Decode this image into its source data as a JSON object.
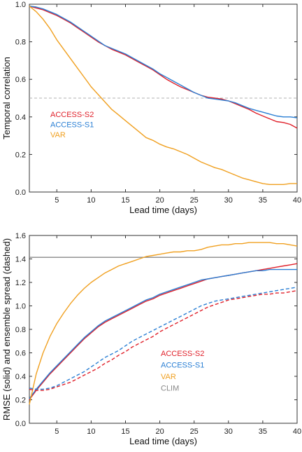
{
  "chart_data": [
    {
      "type": "line",
      "xlabel": "Lead time (days)",
      "ylabel": "Temporal correlation",
      "xlim": [
        1,
        40
      ],
      "ylim": [
        0,
        1.0
      ],
      "xticks": [
        5,
        10,
        15,
        20,
        25,
        30,
        35,
        40
      ],
      "yticks": [
        0,
        0.2,
        0.4,
        0.6,
        0.8,
        1.0
      ],
      "ytick_labels": [
        "0.0",
        "0.2",
        "0.4",
        "0.6",
        "0.8",
        "1.0"
      ],
      "legend_position": "left",
      "reference_line": {
        "y": 0.5,
        "style": "dashed",
        "color": "#b0b0b0"
      },
      "series": [
        {
          "name": "ACCESS-S2",
          "color": "#e0202a",
          "style": "solid",
          "x": [
            1,
            2,
            3,
            4,
            5,
            6,
            7,
            8,
            9,
            10,
            11,
            12,
            13,
            14,
            15,
            16,
            17,
            18,
            19,
            20,
            21,
            22,
            23,
            24,
            25,
            26,
            27,
            28,
            29,
            30,
            31,
            32,
            33,
            34,
            35,
            36,
            37,
            38,
            39,
            40
          ],
          "y": [
            0.99,
            0.98,
            0.97,
            0.955,
            0.94,
            0.92,
            0.9,
            0.875,
            0.85,
            0.825,
            0.8,
            0.78,
            0.76,
            0.745,
            0.73,
            0.71,
            0.69,
            0.67,
            0.65,
            0.625,
            0.6,
            0.58,
            0.56,
            0.545,
            0.53,
            0.515,
            0.505,
            0.5,
            0.495,
            0.485,
            0.47,
            0.455,
            0.44,
            0.42,
            0.405,
            0.39,
            0.375,
            0.37,
            0.36,
            0.34
          ]
        },
        {
          "name": "ACCESS-S1",
          "color": "#2a7fd4",
          "style": "solid",
          "x": [
            1,
            2,
            3,
            4,
            5,
            6,
            7,
            8,
            9,
            10,
            11,
            12,
            13,
            14,
            15,
            16,
            17,
            18,
            19,
            20,
            21,
            22,
            23,
            24,
            25,
            26,
            27,
            28,
            29,
            30,
            31,
            32,
            33,
            34,
            35,
            36,
            37,
            38,
            39,
            40
          ],
          "y": [
            0.99,
            0.985,
            0.975,
            0.96,
            0.945,
            0.925,
            0.905,
            0.88,
            0.855,
            0.83,
            0.805,
            0.78,
            0.765,
            0.75,
            0.735,
            0.715,
            0.695,
            0.675,
            0.655,
            0.63,
            0.61,
            0.59,
            0.57,
            0.55,
            0.53,
            0.515,
            0.5,
            0.495,
            0.49,
            0.485,
            0.475,
            0.46,
            0.445,
            0.435,
            0.425,
            0.415,
            0.405,
            0.4,
            0.4,
            0.395
          ]
        },
        {
          "name": "VAR",
          "color": "#f0a020",
          "style": "solid",
          "x": [
            1,
            2,
            3,
            4,
            5,
            6,
            7,
            8,
            9,
            10,
            11,
            12,
            13,
            14,
            15,
            16,
            17,
            18,
            19,
            20,
            21,
            22,
            23,
            24,
            25,
            26,
            27,
            28,
            29,
            30,
            31,
            32,
            33,
            34,
            35,
            36,
            37,
            38,
            39,
            40
          ],
          "y": [
            0.99,
            0.96,
            0.92,
            0.87,
            0.81,
            0.76,
            0.71,
            0.66,
            0.61,
            0.56,
            0.52,
            0.48,
            0.44,
            0.41,
            0.38,
            0.35,
            0.32,
            0.29,
            0.275,
            0.255,
            0.24,
            0.23,
            0.215,
            0.2,
            0.18,
            0.16,
            0.145,
            0.13,
            0.12,
            0.105,
            0.09,
            0.075,
            0.065,
            0.055,
            0.045,
            0.04,
            0.04,
            0.04,
            0.045,
            0.045
          ]
        }
      ]
    },
    {
      "type": "line",
      "xlabel": "Lead time (days)",
      "ylabel": "RMSE (solid) and ensemble spread (dashed)",
      "xlim": [
        1,
        40
      ],
      "ylim": [
        0,
        1.6
      ],
      "xticks": [
        5,
        10,
        15,
        20,
        25,
        30,
        35,
        40
      ],
      "yticks": [
        0,
        0.2,
        0.4,
        0.6,
        0.8,
        1.0,
        1.2,
        1.4,
        1.6
      ],
      "ytick_labels": [
        "0.0",
        "0.2",
        "0.4",
        "0.6",
        "0.8",
        "1.0",
        "1.2",
        "1.4",
        "1.6"
      ],
      "legend_position": "center-right",
      "series": [
        {
          "name": "ACCESS-S2",
          "color": "#e0202a",
          "style": "solid",
          "x": [
            1,
            2,
            3,
            4,
            5,
            6,
            7,
            8,
            9,
            10,
            11,
            12,
            13,
            14,
            15,
            16,
            17,
            18,
            19,
            20,
            21,
            22,
            23,
            24,
            25,
            26,
            27,
            28,
            29,
            30,
            31,
            32,
            33,
            34,
            35,
            36,
            37,
            38,
            39,
            40
          ],
          "y": [
            0.2,
            0.28,
            0.35,
            0.42,
            0.48,
            0.54,
            0.6,
            0.66,
            0.72,
            0.77,
            0.82,
            0.86,
            0.89,
            0.92,
            0.95,
            0.98,
            1.01,
            1.04,
            1.06,
            1.09,
            1.11,
            1.13,
            1.15,
            1.17,
            1.19,
            1.21,
            1.23,
            1.24,
            1.25,
            1.26,
            1.27,
            1.28,
            1.29,
            1.3,
            1.31,
            1.32,
            1.33,
            1.34,
            1.35,
            1.36
          ]
        },
        {
          "name": "ACCESS-S1",
          "color": "#2a7fd4",
          "style": "solid",
          "x": [
            1,
            2,
            3,
            4,
            5,
            6,
            7,
            8,
            9,
            10,
            11,
            12,
            13,
            14,
            15,
            16,
            17,
            18,
            19,
            20,
            21,
            22,
            23,
            24,
            25,
            26,
            27,
            28,
            29,
            30,
            31,
            32,
            33,
            34,
            35,
            36,
            37,
            38,
            39,
            40
          ],
          "y": [
            0.21,
            0.29,
            0.36,
            0.43,
            0.49,
            0.55,
            0.61,
            0.67,
            0.73,
            0.78,
            0.83,
            0.87,
            0.9,
            0.93,
            0.96,
            0.99,
            1.02,
            1.05,
            1.07,
            1.1,
            1.12,
            1.14,
            1.16,
            1.18,
            1.2,
            1.22,
            1.23,
            1.24,
            1.25,
            1.26,
            1.27,
            1.28,
            1.29,
            1.3,
            1.3,
            1.31,
            1.31,
            1.31,
            1.31,
            1.31
          ]
        },
        {
          "name": "VAR",
          "color": "#f0a020",
          "style": "solid",
          "x": [
            1,
            2,
            3,
            4,
            5,
            6,
            7,
            8,
            9,
            10,
            11,
            12,
            13,
            14,
            15,
            16,
            17,
            18,
            19,
            20,
            21,
            22,
            23,
            24,
            25,
            26,
            27,
            28,
            29,
            30,
            31,
            32,
            33,
            34,
            35,
            36,
            37,
            38,
            39,
            40
          ],
          "y": [
            0.16,
            0.42,
            0.6,
            0.74,
            0.85,
            0.94,
            1.02,
            1.09,
            1.15,
            1.2,
            1.24,
            1.28,
            1.31,
            1.34,
            1.36,
            1.38,
            1.4,
            1.42,
            1.43,
            1.44,
            1.45,
            1.46,
            1.46,
            1.47,
            1.47,
            1.48,
            1.5,
            1.51,
            1.52,
            1.52,
            1.53,
            1.53,
            1.54,
            1.54,
            1.54,
            1.54,
            1.53,
            1.53,
            1.52,
            1.51
          ]
        },
        {
          "name": "ACCESS-S2",
          "color": "#e0202a",
          "style": "dashed",
          "x": [
            1,
            2,
            3,
            4,
            5,
            6,
            7,
            8,
            9,
            10,
            11,
            12,
            13,
            14,
            15,
            16,
            17,
            18,
            19,
            20,
            21,
            22,
            23,
            24,
            25,
            26,
            27,
            28,
            29,
            30,
            31,
            32,
            33,
            34,
            35,
            36,
            37,
            38,
            39,
            40
          ],
          "y": [
            0.29,
            0.28,
            0.28,
            0.29,
            0.31,
            0.33,
            0.35,
            0.38,
            0.41,
            0.44,
            0.47,
            0.51,
            0.54,
            0.58,
            0.61,
            0.65,
            0.68,
            0.71,
            0.74,
            0.78,
            0.81,
            0.84,
            0.87,
            0.9,
            0.93,
            0.96,
            0.99,
            1.01,
            1.03,
            1.05,
            1.06,
            1.07,
            1.08,
            1.09,
            1.1,
            1.1,
            1.11,
            1.11,
            1.12,
            1.13
          ]
        },
        {
          "name": "ACCESS-S1",
          "color": "#2a7fd4",
          "style": "dashed",
          "x": [
            1,
            2,
            3,
            4,
            5,
            6,
            7,
            8,
            9,
            10,
            11,
            12,
            13,
            14,
            15,
            16,
            17,
            18,
            19,
            20,
            21,
            22,
            23,
            24,
            25,
            26,
            27,
            28,
            29,
            30,
            31,
            32,
            33,
            34,
            35,
            36,
            37,
            38,
            39,
            40
          ],
          "y": [
            0.3,
            0.29,
            0.29,
            0.3,
            0.32,
            0.35,
            0.38,
            0.41,
            0.44,
            0.48,
            0.52,
            0.56,
            0.59,
            0.62,
            0.66,
            0.7,
            0.73,
            0.76,
            0.79,
            0.82,
            0.85,
            0.88,
            0.91,
            0.94,
            0.97,
            1.0,
            1.02,
            1.04,
            1.05,
            1.06,
            1.07,
            1.08,
            1.09,
            1.1,
            1.11,
            1.12,
            1.13,
            1.14,
            1.15,
            1.16
          ]
        }
      ],
      "reference_line": {
        "name": "CLIM",
        "y": 1.414,
        "style": "solid",
        "color": "#888888"
      }
    }
  ]
}
